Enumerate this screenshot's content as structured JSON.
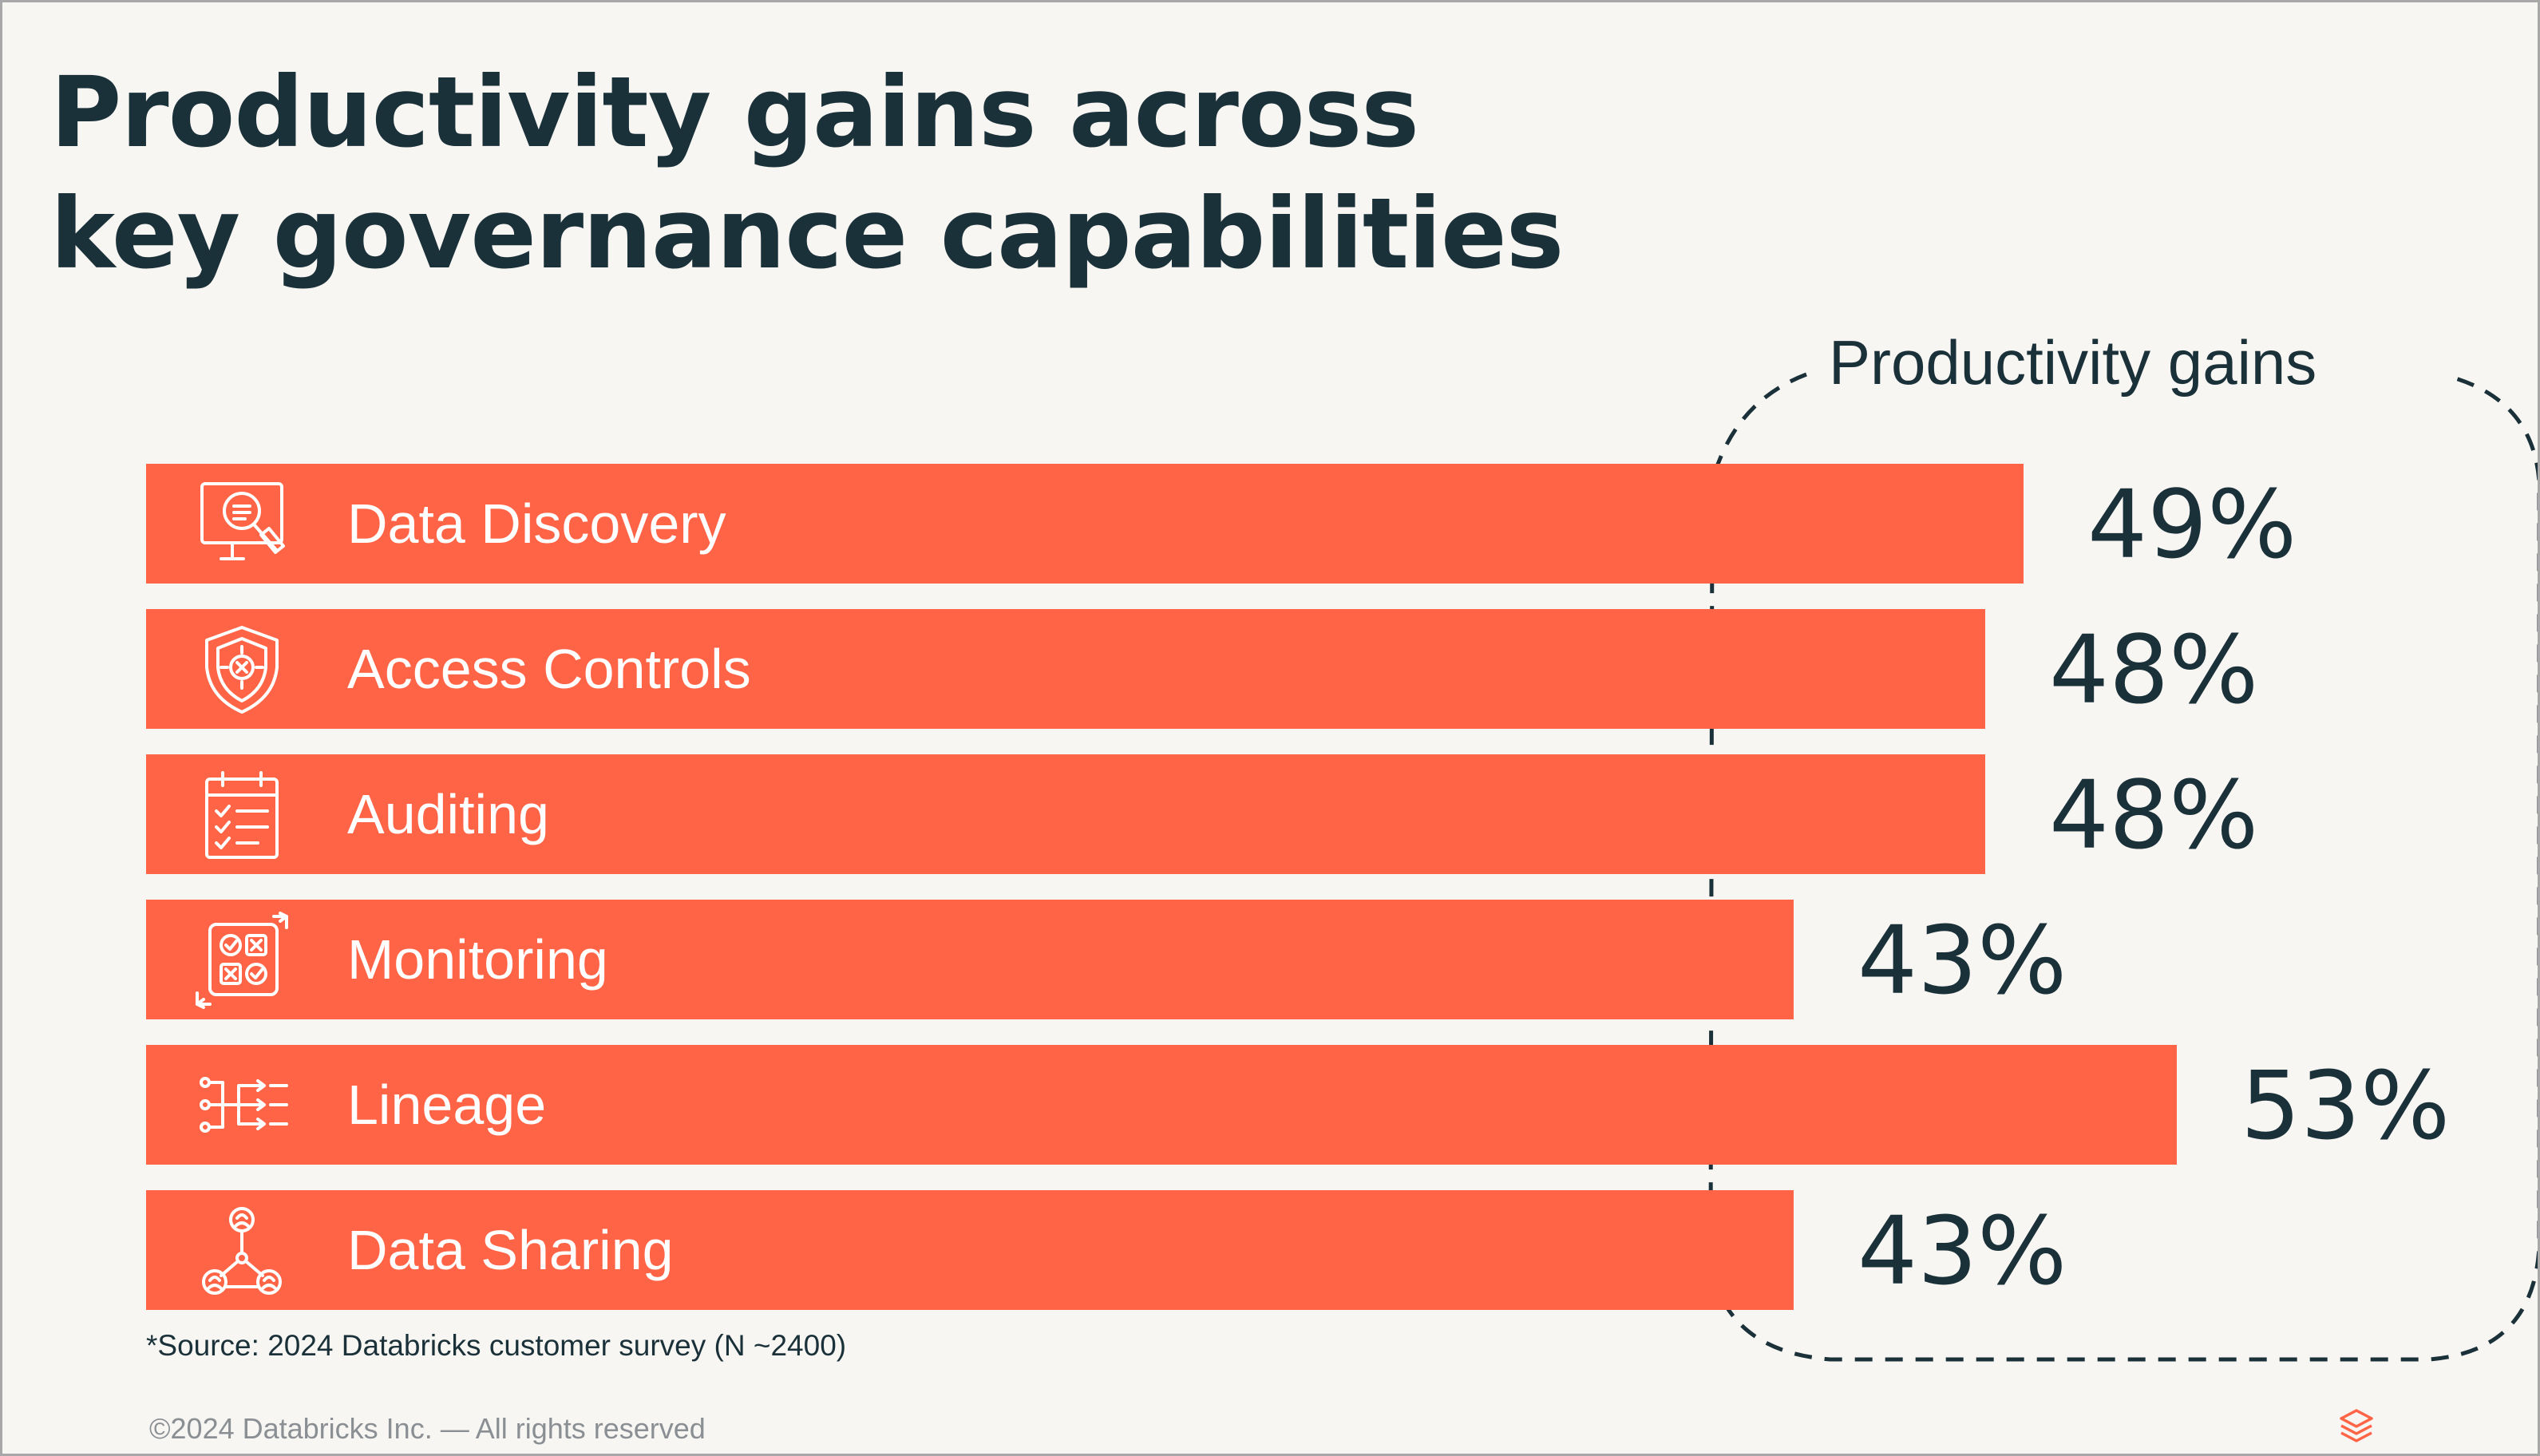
{
  "slide": {
    "title_lines": [
      "Productivity gains across",
      "key governance capabilities"
    ],
    "source_note": "*Source: 2024 Databricks customer survey (N ~2400)",
    "footer": "©2024 Databricks Inc. — All rights reserved"
  },
  "chart_data": {
    "type": "bar",
    "orientation": "horizontal",
    "title": "Productivity gains across key governance capabilities",
    "bracket_label": "Productivity gains",
    "categories": [
      "Data Discovery",
      "Access Controls",
      "Auditing",
      "Monitoring",
      "Lineage",
      "Data Sharing"
    ],
    "icons": [
      "magnifier-screen-icon",
      "shield-lock-icon",
      "checklist-clipboard-icon",
      "monitoring-grid-icon",
      "lineage-flow-icon",
      "sharing-network-icon"
    ],
    "values": [
      49,
      48,
      48,
      43,
      53,
      43
    ],
    "value_labels": [
      "49%",
      "48%",
      "48%",
      "43%",
      "53%",
      "43%"
    ],
    "unit": "%",
    "legend": "none",
    "grid": false,
    "colors": {
      "bar": "#ff6446",
      "text_dark": "#1b3139",
      "bar_text": "#ffffff",
      "footer_text": "#8a8f93",
      "background": "#f8f6f3"
    }
  }
}
